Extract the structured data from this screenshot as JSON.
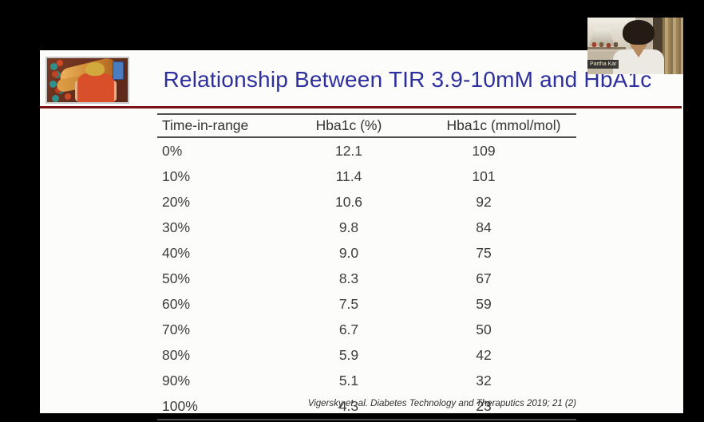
{
  "slide": {
    "title": "Relationship Between TIR 3.9-10mM and HbA1c",
    "colors": {
      "title_blue": "#2e2f9e",
      "divider_maroon": "#7a1315",
      "slide_background": "#fcfcfa",
      "table_text": "#3d3d3d"
    },
    "table": {
      "columns": [
        "Time-in-range",
        "Hba1c (%)",
        "Hba1c (mmol/mol)"
      ],
      "rows": [
        [
          "0%",
          "12.1",
          "109"
        ],
        [
          "10%",
          "11.4",
          "101"
        ],
        [
          "20%",
          "10.6",
          "92"
        ],
        [
          "30%",
          "9.8",
          "84"
        ],
        [
          "40%",
          "9.0",
          "75"
        ],
        [
          "50%",
          "8.3",
          "67"
        ],
        [
          "60%",
          "7.5",
          "59"
        ],
        [
          "70%",
          "6.7",
          "50"
        ],
        [
          "80%",
          "5.9",
          "42"
        ],
        [
          "90%",
          "5.1",
          "32"
        ],
        [
          "100%",
          "4.3",
          "23"
        ]
      ]
    },
    "citation": "Vigersky et. al. Diabetes Technology and Theraputics 2019; 21 (2)",
    "illustration_icon": "cartoon-person-viewing-bread-and-glucose-molecules"
  },
  "webcam": {
    "participant_name": "Partha Kar"
  }
}
